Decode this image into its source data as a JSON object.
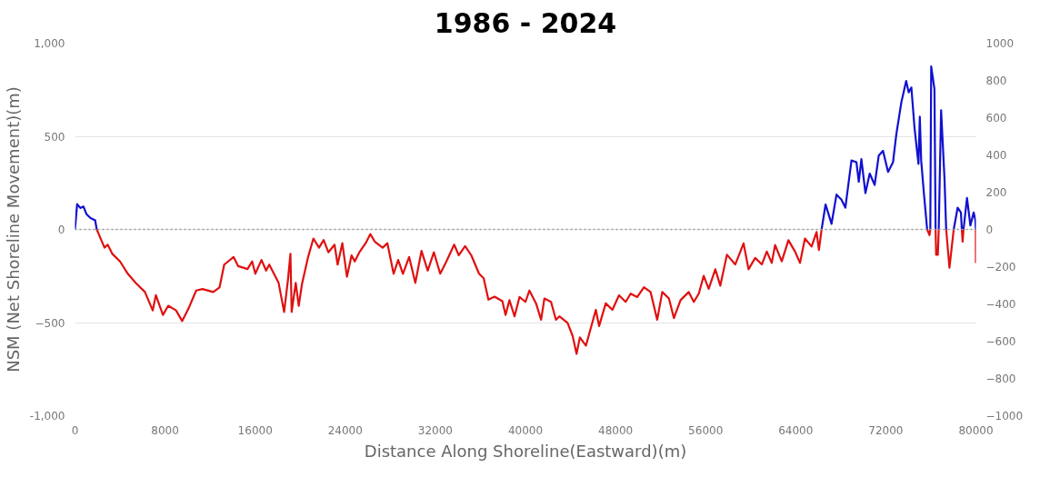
{
  "chart_data": {
    "type": "line",
    "title": "1986 - 2024",
    "xlabel": "Distance Along Shoreline(Eastward)(m)",
    "ylabel": "NSM (Net Shoreline Movement)(m)",
    "xlim": [
      0,
      80000
    ],
    "xticks": [
      0,
      8000,
      16000,
      24000,
      32000,
      40000,
      48000,
      56000,
      64000,
      72000,
      80000
    ],
    "ylim": [
      -1000,
      1000
    ],
    "yticks": [
      {
        "value": -1000,
        "label": "-1,000"
      },
      -500,
      0,
      500,
      {
        "value": 1000,
        "label": "1,000"
      }
    ],
    "y2lim": [
      -1000,
      1000
    ],
    "y2ticks": [
      -1000,
      -800,
      -600,
      -400,
      -200,
      0,
      200,
      400,
      600,
      800,
      1000
    ],
    "grid": "y",
    "ref_lines": [
      {
        "axis": "y",
        "value": 0,
        "color": "#9a9a9a",
        "line_style": "dotted"
      }
    ],
    "series": [
      {
        "color": "#e01010",
        "x": [
          1930,
          2620,
          2900,
          3310,
          4000,
          4690,
          5380,
          6210,
          6900,
          7180,
          7810,
          8280,
          8970,
          9520,
          10070,
          10760,
          11320,
          12280,
          12830,
          13250,
          14080,
          14490,
          15320,
          15730,
          16010,
          16560,
          16970,
          17250,
          18080,
          18570,
          18910,
          19130,
          19240,
          19600,
          19870,
          20150,
          20700,
          21170,
          21670,
          22080,
          22500,
          23050,
          23320,
          23740,
          24150,
          24560,
          24840,
          25250,
          25810,
          26220,
          26630,
          27320,
          27740,
          28290,
          28700,
          29120,
          29670,
          30220,
          30770,
          31320,
          31870,
          32430,
          32980,
          33670,
          34080,
          34640,
          35190,
          35880,
          36290,
          36710,
          37260,
          37950,
          38230,
          38580,
          39030,
          39470,
          40000,
          40350,
          40940,
          41390,
          41680,
          42270,
          42710,
          43010,
          43740,
          44190,
          44540,
          44830,
          45370,
          45810,
          46250,
          46540,
          47130,
          47720,
          48310,
          48900,
          49340,
          49930,
          50520,
          51110,
          51700,
          52150,
          52740,
          53180,
          53770,
          54500,
          54950,
          55390,
          55830,
          56270,
          56860,
          57300,
          57890,
          58630,
          59370,
          59810,
          60400,
          60990,
          61430,
          61870,
          62170,
          62760,
          63350,
          63940,
          64380,
          64820,
          65410,
          65850,
          66060,
          66300
        ],
        "values": [
          0,
          -98,
          -82,
          -131,
          -172,
          -238,
          -287,
          -336,
          -435,
          -353,
          -459,
          -410,
          -435,
          -492,
          -426,
          -328,
          -320,
          -336,
          -312,
          -189,
          -148,
          -197,
          -213,
          -172,
          -238,
          -164,
          -221,
          -189,
          -287,
          -443,
          -271,
          -131,
          -443,
          -287,
          -410,
          -295,
          -148,
          -49,
          -98,
          -57,
          -123,
          -82,
          -189,
          -74,
          -254,
          -139,
          -172,
          -123,
          -74,
          -25,
          -66,
          -98,
          -74,
          -238,
          -164,
          -238,
          -148,
          -287,
          -115,
          -221,
          -123,
          -238,
          -172,
          -82,
          -139,
          -90,
          -139,
          -238,
          -262,
          -377,
          -361,
          -385,
          -459,
          -380,
          -467,
          -363,
          -389,
          -328,
          -397,
          -485,
          -371,
          -389,
          -485,
          -467,
          -502,
          -572,
          -668,
          -580,
          -624,
          -528,
          -432,
          -519,
          -397,
          -432,
          -354,
          -389,
          -345,
          -363,
          -310,
          -336,
          -485,
          -336,
          -371,
          -476,
          -380,
          -336,
          -389,
          -345,
          -249,
          -319,
          -214,
          -302,
          -136,
          -188,
          -75,
          -214,
          -153,
          -188,
          -119,
          -180,
          -84,
          -171,
          -58,
          -119,
          -180,
          -49,
          -92,
          -14,
          -110,
          0
        ]
      },
      {
        "color": "#e01010",
        "x": [
          75670,
          75880,
          75950
        ],
        "values": [
          0,
          -31,
          0
        ]
      },
      {
        "color": "#e01010",
        "x": [
          76420,
          76470,
          76620,
          76700
        ],
        "values": [
          0,
          -136,
          -136,
          0
        ]
      },
      {
        "color": "#e01010",
        "x": [
          77360,
          77650,
          78030
        ],
        "values": [
          0,
          -206,
          0
        ]
      },
      {
        "color": "#e01010",
        "x": [
          78750,
          78820,
          78900
        ],
        "values": [
          0,
          -66,
          0
        ]
      },
      {
        "color": "#e01010",
        "x": [
          79990,
          80000
        ],
        "values": [
          0,
          -180
        ]
      },
      {
        "color": "#1010d0",
        "x": [
          0,
          190,
          470,
          750,
          1020,
          1380,
          1790,
          1930
        ],
        "values": [
          0,
          136,
          115,
          123,
          82,
          61,
          49,
          0
        ]
      },
      {
        "color": "#1010d0",
        "x": [
          66300,
          66650,
          67180,
          67620,
          68060,
          68410,
          68650,
          68950,
          69390,
          69600,
          69830,
          70190,
          70570,
          71010,
          71370,
          71750,
          72200,
          72640,
          72930,
          73380,
          73810,
          74030,
          74270,
          74550,
          74900,
          75020,
          75140,
          75380,
          75670
        ],
        "values": [
          0,
          134,
          30,
          187,
          160,
          117,
          230,
          370,
          361,
          256,
          378,
          195,
          300,
          239,
          396,
          422,
          309,
          361,
          509,
          683,
          797,
          736,
          762,
          544,
          352,
          605,
          370,
          195,
          0
        ]
      },
      {
        "color": "#1010d0",
        "x": [
          75950,
          76030,
          76320,
          76420
        ],
        "values": [
          0,
          875,
          753,
          0
        ]
      },
      {
        "color": "#1010d0",
        "x": [
          76700,
          76910,
          77210,
          77360
        ],
        "values": [
          0,
          640,
          274,
          0
        ]
      },
      {
        "color": "#1010d0",
        "x": [
          78030,
          78380,
          78670,
          78750
        ],
        "values": [
          0,
          117,
          91,
          0
        ]
      },
      {
        "color": "#1010d0",
        "x": [
          78900,
          79210,
          79510,
          79800,
          79950,
          79990
        ],
        "values": [
          0,
          169,
          21,
          91,
          50,
          0
        ]
      }
    ]
  }
}
